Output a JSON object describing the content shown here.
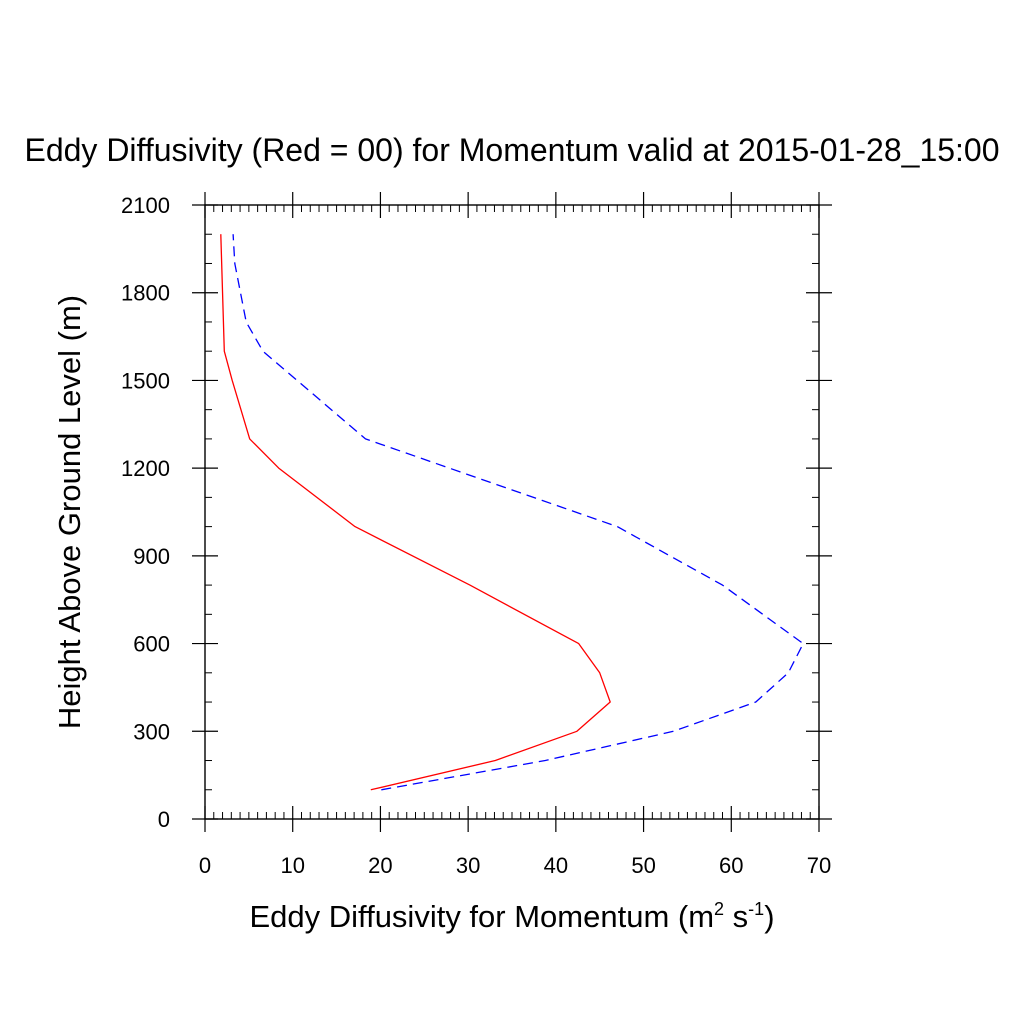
{
  "chart_data": {
    "type": "line",
    "title": "Eddy Diffusivity (Red = 00) for Momentum valid at 2015-01-28_15:00",
    "xlabel": "Eddy Diffusivity for Momentum (m",
    "xlabel_sup1": "2",
    "xlabel_mid": " s",
    "xlabel_sup2": "-1",
    "xlabel_end": ")",
    "ylabel": "Height Above Ground Level (m)",
    "xlim": [
      0,
      70
    ],
    "ylim": [
      0,
      2100
    ],
    "x_ticks": [
      0,
      10,
      20,
      30,
      40,
      50,
      60,
      70
    ],
    "x_tick_labels": [
      "0",
      "10",
      "20",
      "30",
      "40",
      "50",
      "60",
      "70"
    ],
    "y_ticks": [
      0,
      300,
      600,
      900,
      1200,
      1500,
      1800,
      2100
    ],
    "y_tick_labels": [
      "0",
      "300",
      "600",
      "900",
      "1200",
      "1500",
      "1800",
      "2100"
    ],
    "x_minor_step": 1,
    "y_minor_step": 100,
    "grid": false,
    "legend": "none",
    "series": [
      {
        "color": "#ff0000",
        "dash": "solid",
        "points": [
          [
            18.9,
            100
          ],
          [
            33.1,
            200
          ],
          [
            42.4,
            300
          ],
          [
            46.2,
            400
          ],
          [
            45.0,
            500
          ],
          [
            42.6,
            600
          ],
          [
            30.2,
            800
          ],
          [
            17.1,
            1000
          ],
          [
            8.4,
            1200
          ],
          [
            5.1,
            1300
          ],
          [
            3.1,
            1500
          ],
          [
            2.2,
            1600
          ],
          [
            1.8,
            2000
          ]
        ]
      },
      {
        "color": "#0000ff",
        "dash": "dashed",
        "points": [
          [
            20.1,
            100
          ],
          [
            38.8,
            200
          ],
          [
            53.4,
            300
          ],
          [
            62.8,
            400
          ],
          [
            66.5,
            500
          ],
          [
            68.2,
            600
          ],
          [
            59.0,
            800
          ],
          [
            47.0,
            1000
          ],
          [
            18.3,
            1300
          ],
          [
            6.6,
            1600
          ],
          [
            4.7,
            1700
          ],
          [
            3.4,
            1900
          ],
          [
            3.2,
            2000
          ]
        ]
      }
    ]
  }
}
